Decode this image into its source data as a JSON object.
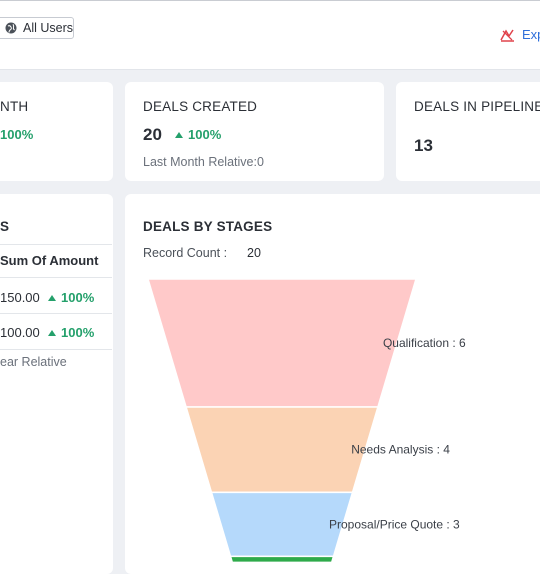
{
  "topbar": {
    "user_filter": "All Users",
    "export_label": "Exp"
  },
  "kpis": [
    {
      "title": "NTH",
      "change": "100%"
    },
    {
      "title": "DEALS CREATED",
      "value": "20",
      "change": "100%",
      "relative": "Last Month Relative:0"
    },
    {
      "title": "DEALS IN PIPELINE",
      "value": "13"
    }
  ],
  "left_panel": {
    "title": "S",
    "column_header": "Sum Of Amount",
    "rows": [
      {
        "amount": "150.00",
        "change": "100%"
      },
      {
        "amount": "100.00",
        "change": "100%"
      }
    ],
    "footer": "ear Relative"
  },
  "deals_by_stages": {
    "title": "DEALS BY STAGES",
    "record_count_label": "Record Count :",
    "record_count_value": "20"
  },
  "chart_data": {
    "type": "funnel",
    "title": "DEALS BY STAGES",
    "categories": [
      "Qualification",
      "Needs Analysis",
      "Proposal/Price Quote",
      ""
    ],
    "values": [
      6,
      4,
      3,
      null
    ],
    "labels": [
      "Qualification : 6",
      "Needs Analysis : 4",
      "Proposal/Price Quote : 3"
    ],
    "colors": [
      "#ffc9c9",
      "#fbd3b4",
      "#b5d9fb",
      "#2eaa4a"
    ]
  },
  "colors": {
    "positive": "#24a06b",
    "link": "#2f6fda",
    "export_icon": "#e0424b"
  },
  "icons": {
    "user_filter": "globe-icon",
    "export": "chart-export-icon",
    "change": "triangle-up-icon"
  }
}
